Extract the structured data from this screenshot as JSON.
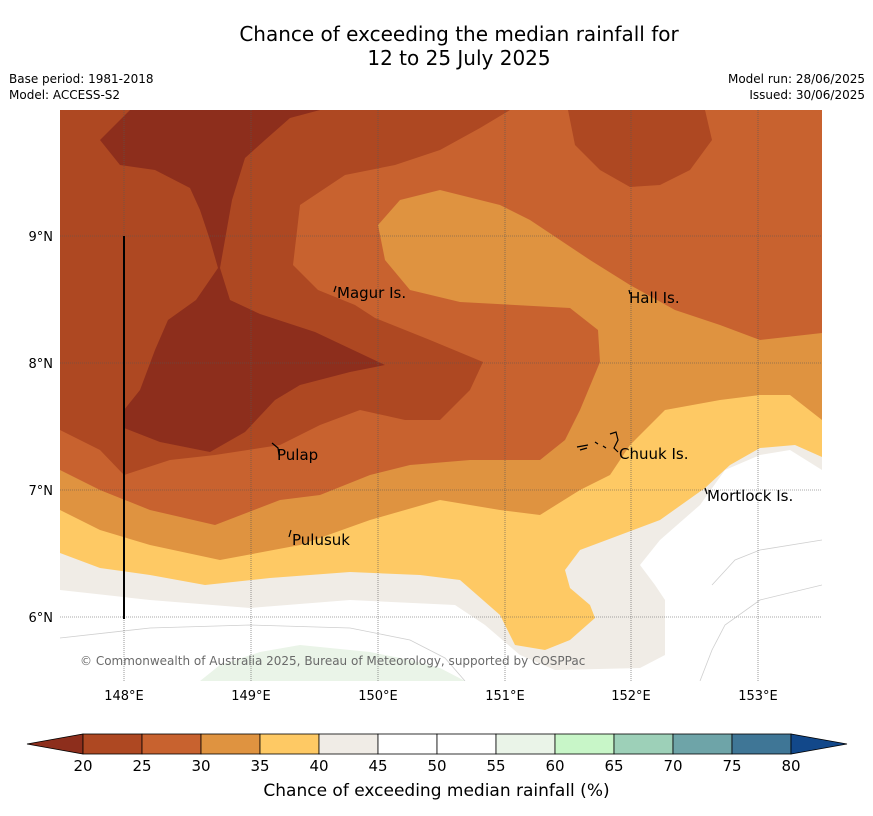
{
  "header": {
    "title_line1": "Chance of exceeding the median rainfall for",
    "title_line2": "12 to 25 July 2025",
    "base_period": "Base period: 1981-2018",
    "model": "Model: ACCESS-S2",
    "model_run": "Model run: 28/06/2025",
    "issued": "Issued: 30/06/2025"
  },
  "map": {
    "lat_ticks": [
      "9°N",
      "8°N",
      "7°N",
      "6°N"
    ],
    "lon_ticks": [
      "148°E",
      "149°E",
      "150°E",
      "151°E",
      "152°E",
      "153°E"
    ],
    "places": [
      "Magur Is.",
      "Hall Is.",
      "Pulap",
      "Chuuk Is.",
      "Mortlock Is.",
      "Pulusuk"
    ],
    "copyright": "© Commonwealth of Australia 2025, Bureau of Meteorology, supported by COSPPac"
  },
  "colorbar": {
    "ticks": [
      "20",
      "25",
      "30",
      "35",
      "40",
      "45",
      "50",
      "55",
      "60",
      "65",
      "70",
      "75",
      "80"
    ],
    "colors": [
      "#8d2e1c",
      "#ae4822",
      "#c8622f",
      "#df9340",
      "#fec964",
      "#f0ece6",
      "#ffffff",
      "#ffffff",
      "#eaf4e8",
      "#c8f6c8",
      "#9dd0b8",
      "#6ea4a8",
      "#3f7696",
      "#12488a"
    ],
    "label": "Chance of exceeding median rainfall (%)"
  }
}
